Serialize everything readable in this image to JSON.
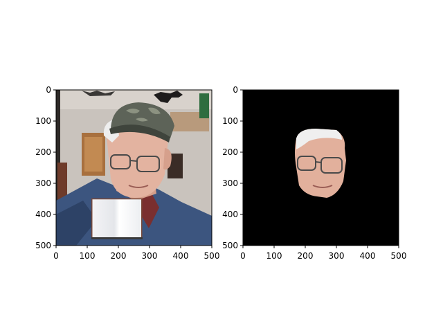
{
  "chart_data": [
    {
      "type": "image",
      "title": "",
      "xlabel": "",
      "ylabel": "",
      "xlim": [
        0,
        500
      ],
      "ylim": [
        500,
        0
      ],
      "xticks": [
        0,
        100,
        200,
        300,
        400,
        500
      ],
      "yticks": [
        0,
        100,
        200,
        300,
        400,
        500
      ],
      "xtick_labels": [
        "0",
        "100",
        "200",
        "300",
        "400",
        "500"
      ],
      "ytick_labels": [
        "0",
        "100",
        "200",
        "300",
        "400",
        "500"
      ],
      "content": "photo of an elderly man wearing a camouflage cap and glasses, with a white rectangular patch pasted over the lower-center region",
      "patch": {
        "x": [
          115,
          275
        ],
        "y": [
          350,
          475
        ],
        "color": "#ffffff"
      }
    },
    {
      "type": "image",
      "title": "",
      "xlabel": "",
      "ylabel": "",
      "xlim": [
        0,
        500
      ],
      "ylim": [
        500,
        0
      ],
      "xticks": [
        0,
        100,
        200,
        300,
        400,
        500
      ],
      "yticks": [
        0,
        100,
        200,
        300,
        400,
        500
      ],
      "xtick_labels": [
        "0",
        "100",
        "200",
        "300",
        "400",
        "500"
      ],
      "ytick_labels": [
        "0",
        "100",
        "200",
        "300",
        "400",
        "500"
      ],
      "content": "segmented face region of the same man on a black background",
      "background": "#000000"
    }
  ],
  "colors": {
    "axes": "#000000",
    "page": "#ffffff",
    "mask_background": "#000000",
    "skin": "#e3b3a0",
    "hair": "#eeeeee",
    "cap": "#5d6358",
    "denim": "#3c557f",
    "wall": "#c9c3bd"
  }
}
